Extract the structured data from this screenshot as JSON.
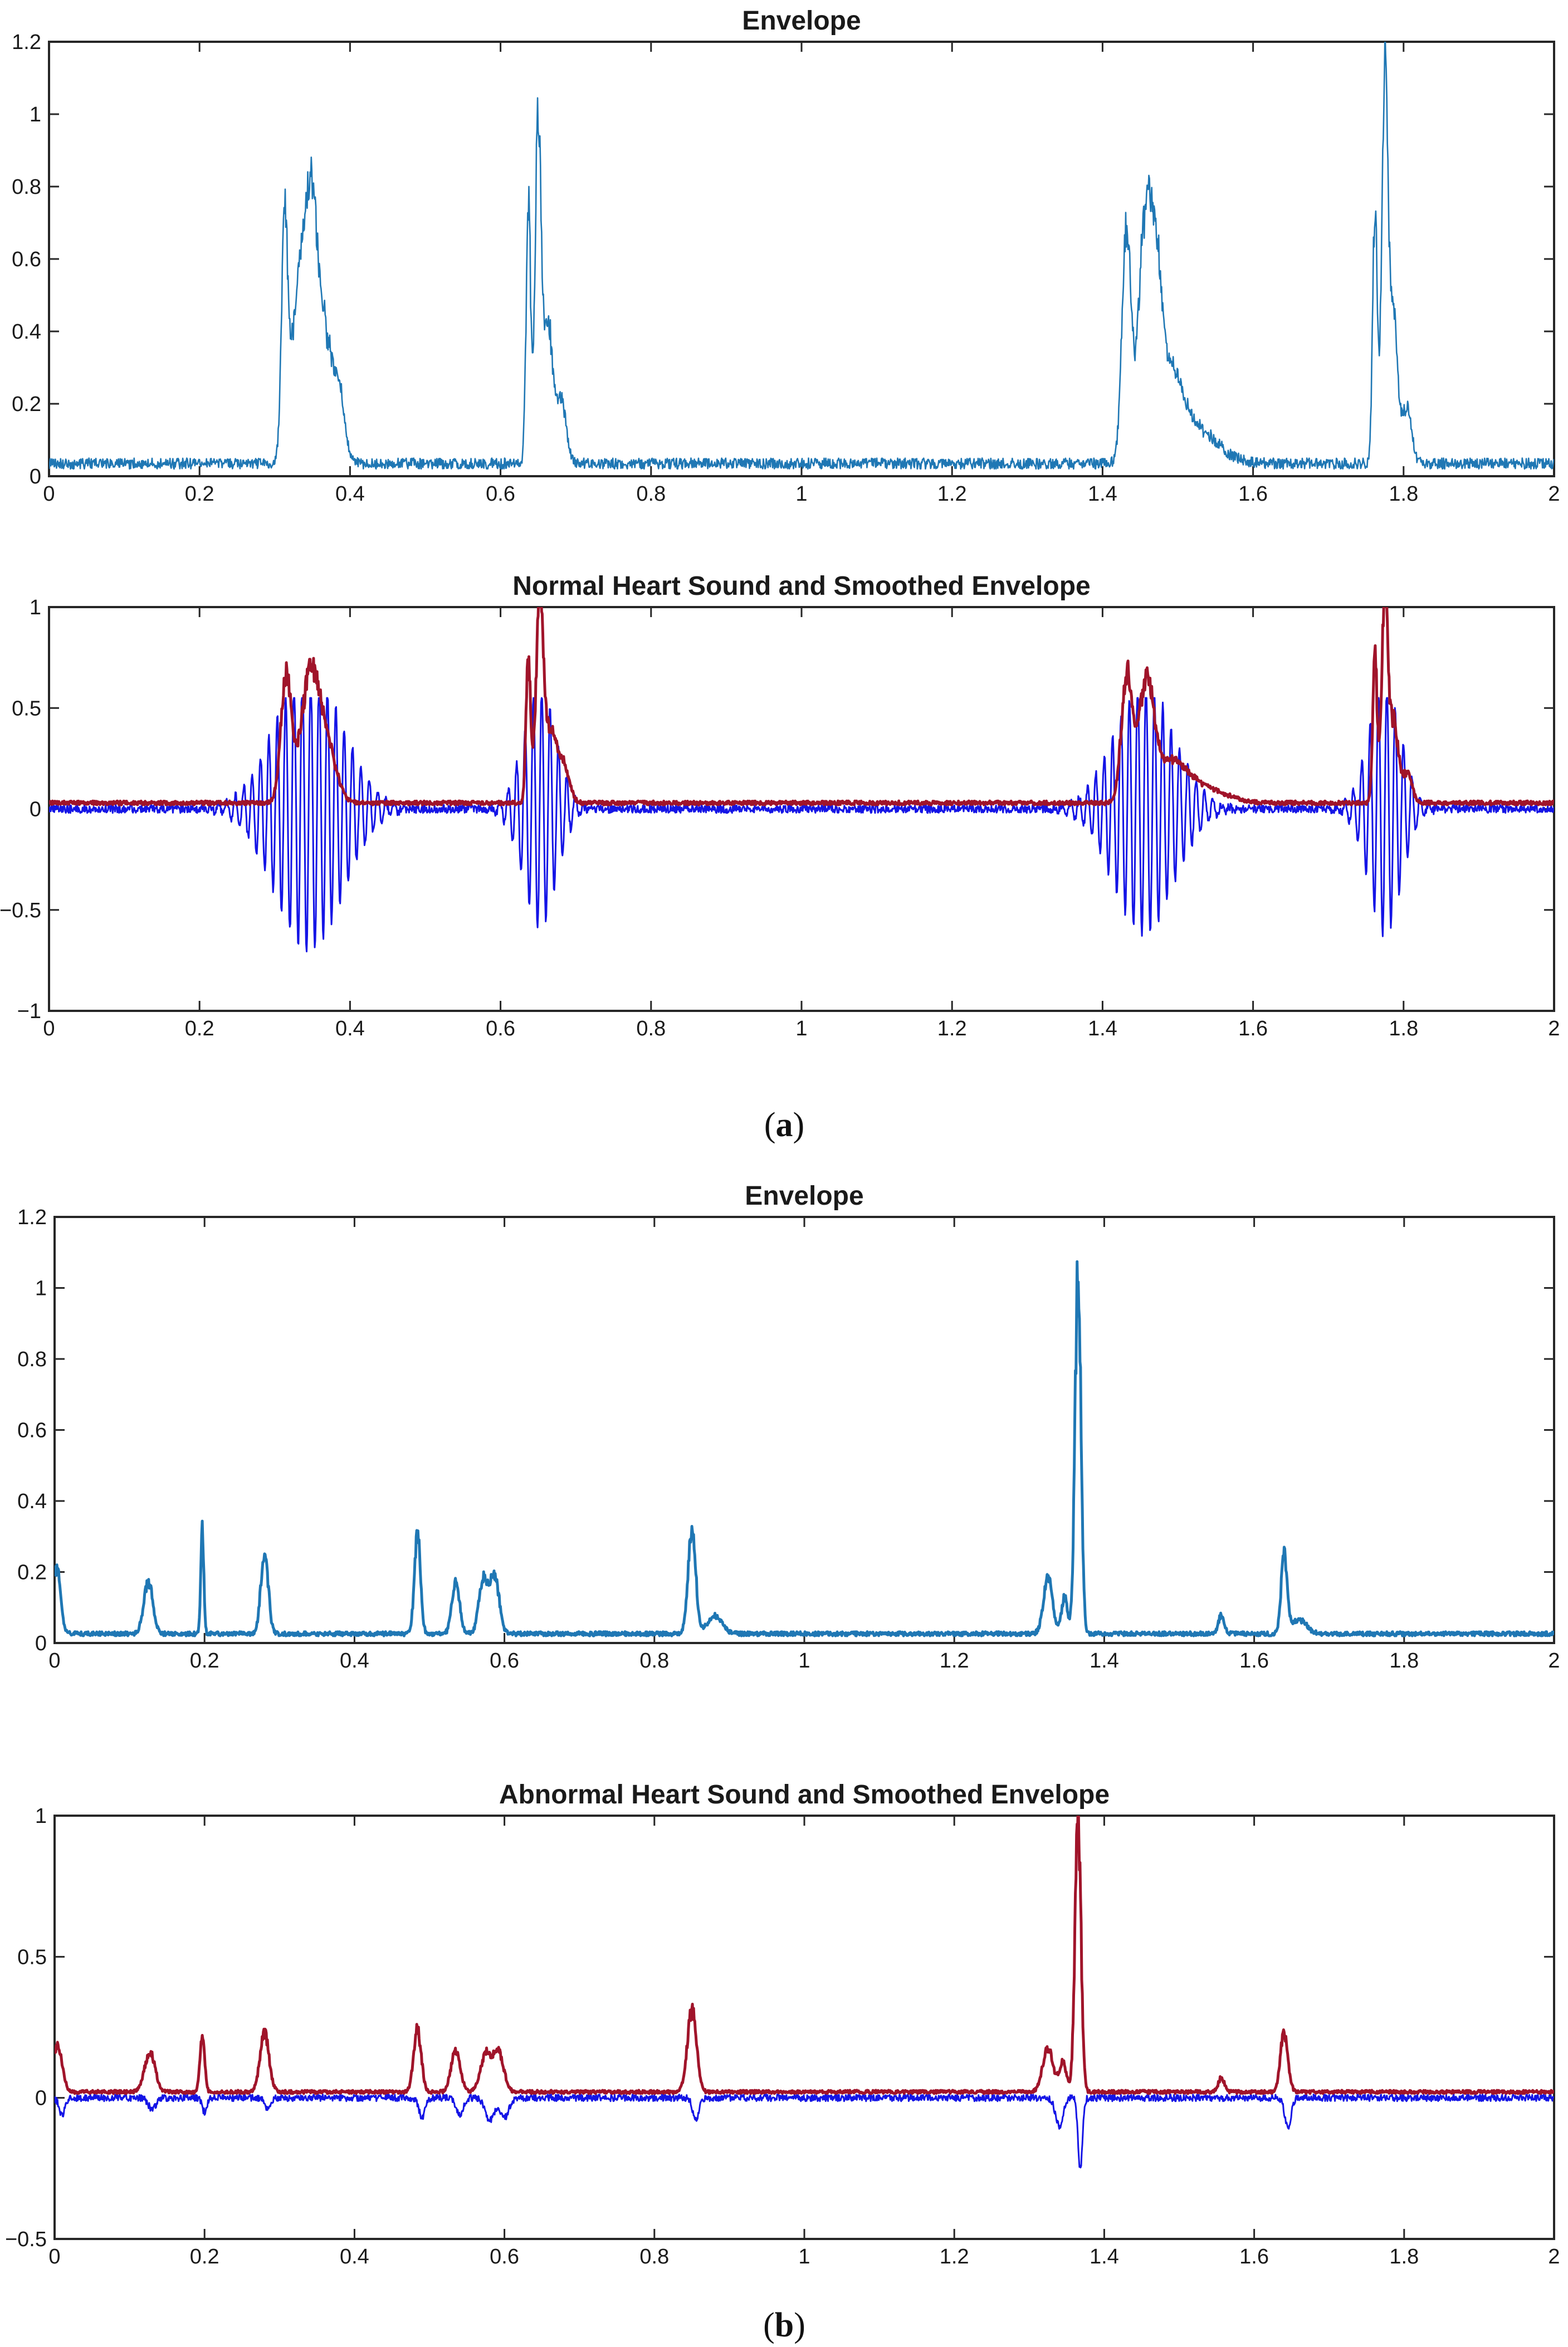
{
  "figure": {
    "caption_a": {
      "open": "(",
      "letter": "a",
      "close": ")"
    },
    "caption_b": {
      "open": "(",
      "letter": "b",
      "close": ")"
    }
  },
  "chart_data": [
    {
      "type": "line",
      "title": "Envelope",
      "xlim": [
        0,
        2
      ],
      "ylim": [
        0,
        1.2
      ],
      "xticks": [
        0,
        0.2,
        0.4,
        0.6,
        0.8,
        1,
        1.2,
        1.4,
        1.6,
        1.8,
        2
      ],
      "yticks": [
        0,
        0.2,
        0.4,
        0.6,
        0.8,
        1,
        1.2
      ],
      "xtick_labels": [
        "0",
        "0.2",
        "0.4",
        "0.6",
        "0.8",
        "1",
        "1.2",
        "1.4",
        "1.6",
        "1.8",
        "2"
      ],
      "ytick_labels": [
        "0",
        "0.2",
        "0.4",
        "0.6",
        "0.8",
        "1",
        "1.2"
      ],
      "series": [
        {
          "name": "envelope",
          "color": "#1f77b4",
          "noise": 0.03,
          "peaks": [
            [
              0.313,
              0.62,
              0.004
            ],
            [
              0.33,
              0.38,
              0.01
            ],
            [
              0.348,
              0.64,
              0.01
            ],
            [
              0.37,
              0.3,
              0.012
            ],
            [
              0.388,
              0.1,
              0.006
            ],
            [
              0.637,
              0.72,
              0.003
            ],
            [
              0.65,
              0.95,
              0.004
            ],
            [
              0.663,
              0.38,
              0.006
            ],
            [
              0.68,
              0.18,
              0.007
            ],
            [
              1.432,
              0.65,
              0.006
            ],
            [
              1.455,
              0.58,
              0.008
            ],
            [
              1.47,
              0.48,
              0.008
            ],
            [
              1.49,
              0.2,
              0.015
            ],
            [
              1.52,
              0.1,
              0.03
            ],
            [
              1.762,
              0.72,
              0.003
            ],
            [
              1.775,
              1.02,
              0.004
            ],
            [
              1.786,
              0.42,
              0.006
            ],
            [
              1.805,
              0.15,
              0.006
            ]
          ]
        }
      ]
    },
    {
      "type": "line",
      "title": "Normal Heart Sound and Smoothed Envelope",
      "xlim": [
        0,
        2
      ],
      "ylim": [
        -1,
        1
      ],
      "xticks": [
        0,
        0.2,
        0.4,
        0.6,
        0.8,
        1,
        1.2,
        1.4,
        1.6,
        1.8,
        2
      ],
      "yticks": [
        -1,
        -0.5,
        0,
        0.5,
        1
      ],
      "xtick_labels": [
        "0",
        "0.2",
        "0.4",
        "0.6",
        "0.8",
        "1",
        "1.2",
        "1.4",
        "1.6",
        "1.8",
        "2"
      ],
      "ytick_labels": [
        "−1",
        "−0.5",
        "0",
        "0.5",
        "1"
      ],
      "series": [
        {
          "name": "heart sound",
          "color": "#1414e6",
          "kind": "oscillation",
          "bursts": [
            [
              0.345,
              0.7,
              0.045
            ],
            [
              0.652,
              0.6,
              0.022
            ],
            [
              1.455,
              0.62,
              0.04
            ],
            [
              1.775,
              0.62,
              0.022
            ]
          ],
          "noise": 0.02
        },
        {
          "name": "smoothed envelope",
          "color": "#a0142a",
          "noise": 0.02,
          "peaks": [
            [
              0.315,
              0.62,
              0.007
            ],
            [
              0.347,
              0.63,
              0.012
            ],
            [
              0.37,
              0.25,
              0.012
            ],
            [
              0.637,
              0.72,
              0.003
            ],
            [
              0.652,
              0.94,
              0.005
            ],
            [
              0.667,
              0.35,
              0.008
            ],
            [
              0.685,
              0.17,
              0.007
            ],
            [
              1.432,
              0.64,
              0.007
            ],
            [
              1.458,
              0.57,
              0.01
            ],
            [
              1.49,
              0.18,
              0.02
            ],
            [
              1.53,
              0.08,
              0.03
            ],
            [
              1.762,
              0.71,
              0.003
            ],
            [
              1.775,
              1.0,
              0.004
            ],
            [
              1.787,
              0.4,
              0.006
            ],
            [
              1.805,
              0.15,
              0.006
            ]
          ]
        }
      ]
    },
    {
      "type": "line",
      "title": "Envelope",
      "xlim": [
        0,
        2
      ],
      "ylim": [
        0,
        1.2
      ],
      "xticks": [
        0,
        0.2,
        0.4,
        0.6,
        0.8,
        1,
        1.2,
        1.4,
        1.6,
        1.8,
        2
      ],
      "yticks": [
        0,
        0.2,
        0.4,
        0.6,
        0.8,
        1,
        1.2
      ],
      "xtick_labels": [
        "0",
        "0.2",
        "0.4",
        "0.6",
        "0.8",
        "1",
        "1.2",
        "1.4",
        "1.6",
        "1.8",
        "2"
      ],
      "ytick_labels": [
        "0",
        "0.2",
        "0.4",
        "0.6",
        "0.8",
        "1",
        "1.2"
      ],
      "series": [
        {
          "name": "envelope",
          "color": "#1f77b4",
          "noise": 0.012,
          "peaks": [
            [
              0.003,
              0.19,
              0.005
            ],
            [
              0.125,
              0.15,
              0.006
            ],
            [
              0.197,
              0.3,
              0.002
            ],
            [
              0.28,
              0.22,
              0.005
            ],
            [
              0.484,
              0.28,
              0.004
            ],
            [
              0.535,
              0.15,
              0.005
            ],
            [
              0.572,
              0.15,
              0.006
            ],
            [
              0.587,
              0.16,
              0.006
            ],
            [
              0.85,
              0.3,
              0.005
            ],
            [
              0.88,
              0.05,
              0.01
            ],
            [
              1.325,
              0.16,
              0.006
            ],
            [
              1.347,
              0.1,
              0.004
            ],
            [
              1.365,
              1.0,
              0.004
            ],
            [
              1.556,
              0.05,
              0.004
            ],
            [
              1.64,
              0.22,
              0.004
            ],
            [
              1.66,
              0.04,
              0.01
            ]
          ]
        }
      ]
    },
    {
      "type": "line",
      "title": "Abnormal Heart Sound and Smoothed Envelope",
      "xlim": [
        0,
        2
      ],
      "ylim": [
        -0.5,
        1
      ],
      "xticks": [
        0,
        0.2,
        0.4,
        0.6,
        0.8,
        1,
        1.2,
        1.4,
        1.6,
        1.8,
        2
      ],
      "yticks": [
        -0.5,
        0,
        0.5,
        1
      ],
      "xtick_labels": [
        "0",
        "0.2",
        "0.4",
        "0.6",
        "0.8",
        "1",
        "1.2",
        "1.4",
        "1.6",
        "1.8",
        "2"
      ],
      "ytick_labels": [
        "−0.5",
        "0",
        "0.5",
        "1"
      ],
      "series": [
        {
          "name": "heart sound",
          "color": "#1414e6",
          "kind": "dips",
          "noise": 0.012,
          "dips": [
            [
              0.01,
              -0.06,
              0.004
            ],
            [
              0.13,
              -0.04,
              0.005
            ],
            [
              0.2,
              -0.05,
              0.003
            ],
            [
              0.285,
              -0.04,
              0.004
            ],
            [
              0.49,
              -0.07,
              0.004
            ],
            [
              0.54,
              -0.06,
              0.005
            ],
            [
              0.58,
              -0.08,
              0.006
            ],
            [
              0.6,
              -0.07,
              0.006
            ],
            [
              0.855,
              -0.08,
              0.004
            ],
            [
              1.34,
              -0.1,
              0.005
            ],
            [
              1.368,
              -0.25,
              0.003
            ],
            [
              1.645,
              -0.11,
              0.004
            ]
          ]
        },
        {
          "name": "smoothed envelope",
          "color": "#a0142a",
          "noise": 0.012,
          "base": 0.015,
          "peaks": [
            [
              0.004,
              0.17,
              0.006
            ],
            [
              0.127,
              0.14,
              0.007
            ],
            [
              0.197,
              0.2,
              0.003
            ],
            [
              0.28,
              0.21,
              0.006
            ],
            [
              0.484,
              0.22,
              0.005
            ],
            [
              0.535,
              0.15,
              0.006
            ],
            [
              0.575,
              0.13,
              0.007
            ],
            [
              0.592,
              0.14,
              0.007
            ],
            [
              0.85,
              0.29,
              0.006
            ],
            [
              1.325,
              0.15,
              0.007
            ],
            [
              1.345,
              0.1,
              0.005
            ],
            [
              1.365,
              0.95,
              0.004
            ],
            [
              1.556,
              0.05,
              0.004
            ],
            [
              1.64,
              0.21,
              0.005
            ]
          ]
        }
      ]
    }
  ]
}
